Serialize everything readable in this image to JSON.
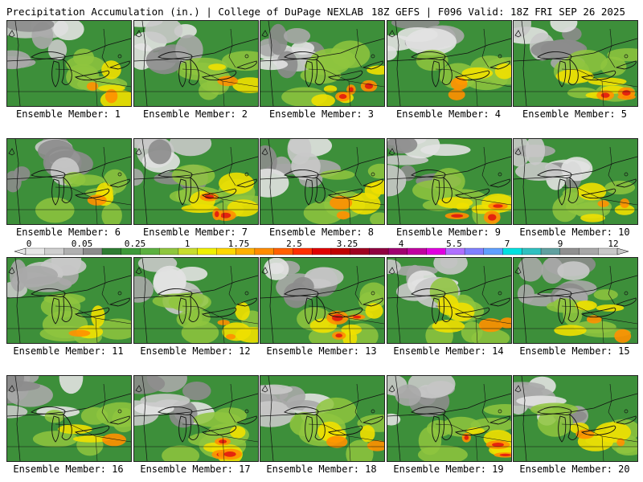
{
  "header": {
    "left": "Precipitation Accumulation (in.) | College of DuPage NEXLAB",
    "right": "18Z GEFS | F096 Valid: 18Z FRI SEP 26 2025"
  },
  "colorbar": {
    "labels": [
      "0",
      "0.05",
      "0.25",
      "1",
      "1.75",
      "2.5",
      "3.25",
      "4",
      "5.5",
      "7",
      "9",
      "12"
    ],
    "colors": [
      "#e6e6e6",
      "#cfcfcf",
      "#b0b0b0",
      "#8c8c8c",
      "#2e7d32",
      "#3d9a3a",
      "#5cb040",
      "#8fc63e",
      "#c8dd2e",
      "#f0f000",
      "#ffd700",
      "#ffb000",
      "#ff8c00",
      "#ff6000",
      "#ff3000",
      "#e00000",
      "#c00000",
      "#a00020",
      "#900040",
      "#a00070",
      "#c000a0",
      "#e000e0",
      "#b070ff",
      "#8080ff",
      "#60a0ff",
      "#00e0e0",
      "#30c0c0",
      "#60a0a0",
      "#909090",
      "#a8a8a8",
      "#c8c8c8"
    ]
  },
  "members": [
    {
      "label": "Ensemble Member: 1",
      "intensity": 2
    },
    {
      "label": "Ensemble Member: 2",
      "intensity": 1
    },
    {
      "label": "Ensemble Member: 3",
      "intensity": 3
    },
    {
      "label": "Ensemble Member: 4",
      "intensity": 2
    },
    {
      "label": "Ensemble Member: 5",
      "intensity": 3
    },
    {
      "label": "Ensemble Member: 6",
      "intensity": 1
    },
    {
      "label": "Ensemble Member: 7",
      "intensity": 3
    },
    {
      "label": "Ensemble Member: 8",
      "intensity": 2
    },
    {
      "label": "Ensemble Member: 9",
      "intensity": 3
    },
    {
      "label": "Ensemble Member: 10",
      "intensity": 2
    },
    {
      "label": "Ensemble Member: 11",
      "intensity": 1
    },
    {
      "label": "Ensemble Member: 12",
      "intensity": 2
    },
    {
      "label": "Ensemble Member: 13",
      "intensity": 3
    },
    {
      "label": "Ensemble Member: 14",
      "intensity": 2
    },
    {
      "label": "Ensemble Member: 15",
      "intensity": 2
    },
    {
      "label": "Ensemble Member: 16",
      "intensity": 1
    },
    {
      "label": "Ensemble Member: 17",
      "intensity": 3
    },
    {
      "label": "Ensemble Member: 18",
      "intensity": 2
    },
    {
      "label": "Ensemble Member: 19",
      "intensity": 3
    },
    {
      "label": "Ensemble Member: 20",
      "intensity": 2
    }
  ]
}
